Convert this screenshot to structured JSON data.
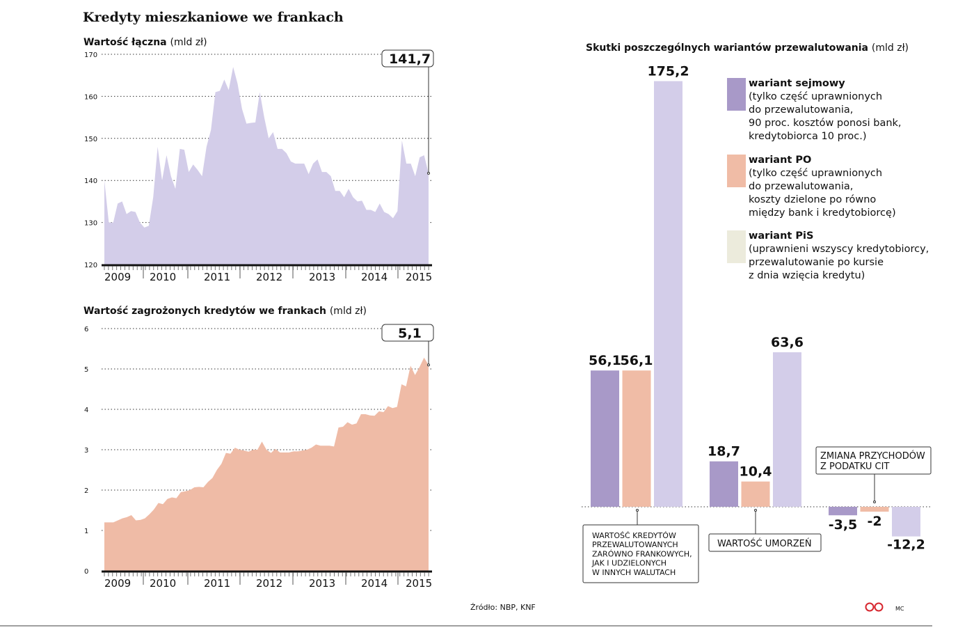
{
  "title": "Kredyty mieszkaniowe we frankach",
  "source": "Źródło:  NBP, KNF",
  "author": "MC",
  "logo": "CP",
  "colors": {
    "total": "#d3cde9",
    "risk": "#efbba6",
    "sejm": "#a899c8",
    "po": "#f0bca6",
    "pis": "#d3cde9",
    "pis_legend": "#ecebdc"
  },
  "chart_data": [
    {
      "type": "area",
      "title": "Wartość łączna",
      "unit": "(mld zł)",
      "ylim": [
        120,
        170
      ],
      "yticks": [
        "120",
        "130",
        "140",
        "150",
        "160",
        "170"
      ],
      "xticks": [
        "2009",
        "2010",
        "2011",
        "2012",
        "2013",
        "2014",
        "2015"
      ],
      "callout": "141,7",
      "values": [
        140,
        130,
        130,
        134.5,
        135,
        132,
        132.7,
        132.5,
        130,
        128.8,
        129.2,
        136,
        148,
        140,
        146,
        141,
        138,
        147.5,
        147.3,
        142,
        143.8,
        142.5,
        141,
        148,
        152,
        161,
        161.3,
        164,
        161.5,
        167,
        163,
        157,
        153.5,
        153.7,
        153.8,
        161,
        155,
        150,
        151.5,
        147.5,
        147.5,
        146.5,
        144.5,
        144,
        144,
        144,
        141.5,
        144,
        145,
        142,
        142,
        141,
        137.5,
        137.5,
        136,
        138,
        136,
        135,
        135.2,
        133,
        133,
        132.5,
        134.5,
        132.5,
        132,
        131,
        132.7,
        149.5,
        144,
        144,
        141,
        145.5,
        146,
        141.7
      ]
    },
    {
      "type": "area",
      "title": "Wartość zagrożonych kredytów we frankach",
      "unit": "(mld zł)",
      "ylim": [
        0,
        6
      ],
      "yticks": [
        "0",
        "1",
        "2",
        "3",
        "4",
        "5",
        "6"
      ],
      "xticks": [
        "2009",
        "2010",
        "2011",
        "2012",
        "2013",
        "2014",
        "2015"
      ],
      "callout": "5,1",
      "values": [
        1.2,
        1.2,
        1.2,
        1.25,
        1.3,
        1.33,
        1.38,
        1.25,
        1.26,
        1.3,
        1.4,
        1.52,
        1.68,
        1.65,
        1.78,
        1.82,
        1.8,
        1.95,
        1.97,
        2.0,
        2.07,
        2.08,
        2.07,
        2.2,
        2.3,
        2.5,
        2.65,
        2.92,
        2.9,
        3.05,
        3.0,
        2.98,
        2.95,
        3.0,
        3.0,
        3.2,
        3.0,
        2.92,
        3.02,
        2.93,
        2.93,
        2.93,
        2.96,
        2.96,
        2.98,
        3.0,
        3.05,
        3.13,
        3.1,
        3.1,
        3.1,
        3.08,
        3.55,
        3.57,
        3.68,
        3.62,
        3.65,
        3.88,
        3.88,
        3.85,
        3.84,
        3.95,
        3.93,
        4.08,
        4.03,
        4.06,
        4.62,
        4.57,
        5.08,
        4.85,
        5.05,
        5.28,
        5.1
      ]
    },
    {
      "type": "bar",
      "title": "Skutki poszczególnych wariantów przewalutowania",
      "unit": "(mld zł)",
      "groups": [
        {
          "note": [
            "WARTOŚĆ KREDYTÓW",
            "PRZEWALUTOWANYCH",
            "ZARÓWNO FRANKOWYCH,",
            "JAK I UDZIELONYCH",
            "W INNYCH WALUTACH"
          ],
          "values": [
            56.1,
            56.1,
            175.2
          ],
          "labels": [
            "56,1",
            "56,1",
            "175,2"
          ]
        },
        {
          "note": [
            "WARTOŚĆ UMORZEŃ"
          ],
          "values": [
            18.7,
            10.4,
            63.6
          ],
          "labels": [
            "18,7",
            "10,4",
            "63,6"
          ]
        },
        {
          "note": [
            "ZMIANA PRZYCHODÓW",
            "Z PODATKU CIT"
          ],
          "values": [
            -3.5,
            -2,
            -12.2
          ],
          "labels": [
            "-3,5",
            "-2",
            "-12,2"
          ]
        }
      ],
      "legend": [
        {
          "name": "wariant sejmowy",
          "desc": [
            "(tylko część uprawnionych",
            "do przewalutowania,",
            "90 proc. kosztów ponosi bank,",
            "kredytobiorca 10 proc.)"
          ]
        },
        {
          "name": "wariant PO",
          "desc": [
            "(tylko część uprawnionych",
            "do przewalutowania,",
            "koszty dzielone po równo",
            "między bank i kredytobiorcę)"
          ]
        },
        {
          "name": "wariant PiS",
          "desc": [
            "(uprawnieni wszyscy kredytobiorcy,",
            "przewalutowanie po kursie",
            "z dnia wzięcia kredytu)"
          ]
        }
      ]
    }
  ]
}
